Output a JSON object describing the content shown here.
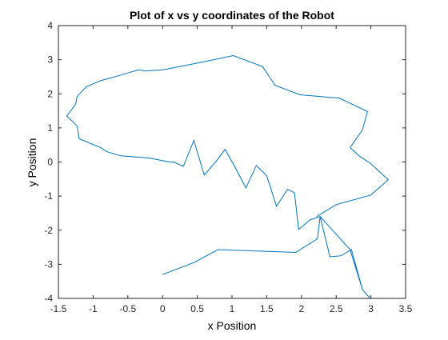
{
  "chart_data": {
    "type": "line",
    "title": "Plot of x vs y coordinates of the Robot",
    "xlabel": "x Position",
    "ylabel": "y Position",
    "xlim": [
      -1.5,
      3.5
    ],
    "ylim": [
      -4,
      4
    ],
    "xticks": [
      "-1.5",
      "-1",
      "-0.5",
      "0",
      "0.5",
      "1",
      "1.5",
      "2",
      "2.5",
      "3",
      "3.5"
    ],
    "yticks": [
      "-4",
      "-3",
      "-2",
      "-1",
      "0",
      "1",
      "2",
      "3",
      "4"
    ],
    "grid": false,
    "legend": "none",
    "line_color": "#0072BD",
    "series": [
      {
        "x": [
          0.0,
          0.45,
          0.8,
          1.92,
          2.23,
          2.27,
          2.41,
          2.57,
          2.72,
          2.88,
          2.99,
          2.88,
          2.7,
          2.27,
          2.12,
          1.96,
          1.9,
          1.8,
          1.64,
          1.5,
          1.35,
          1.2,
          1.03,
          0.9,
          0.78,
          0.6,
          0.45,
          0.3,
          0.16,
          0.1,
          -0.2,
          -0.4,
          -0.6,
          -0.8,
          -0.9,
          -1.2,
          -1.23,
          -1.3,
          -1.38,
          -1.25,
          -1.23,
          -1.1,
          -0.9,
          -0.6,
          -0.35,
          -0.25,
          0.0,
          0.5,
          1.02,
          1.44,
          1.62,
          1.98,
          2.55,
          2.95,
          2.88,
          2.7,
          2.85,
          3.0,
          3.25,
          3.0,
          2.5,
          2.22
        ],
        "y": [
          -3.3,
          -2.95,
          -2.57,
          -2.65,
          -2.25,
          -1.6,
          -2.78,
          -2.75,
          -2.57,
          -3.75,
          -4.0,
          -3.75,
          -2.57,
          -1.6,
          -1.7,
          -1.98,
          -0.9,
          -0.8,
          -1.3,
          -0.4,
          -0.1,
          -0.76,
          -0.1,
          0.37,
          0.04,
          -0.38,
          0.63,
          -0.13,
          0.0,
          0.0,
          0.12,
          0.15,
          0.18,
          0.3,
          0.43,
          0.68,
          1.05,
          1.2,
          1.35,
          1.7,
          1.92,
          2.2,
          2.38,
          2.55,
          2.7,
          2.67,
          2.7,
          2.9,
          3.12,
          2.8,
          2.25,
          1.97,
          1.87,
          1.48,
          0.95,
          0.42,
          0.15,
          -0.05,
          -0.52,
          -0.97,
          -1.25,
          -1.6
        ]
      }
    ]
  }
}
